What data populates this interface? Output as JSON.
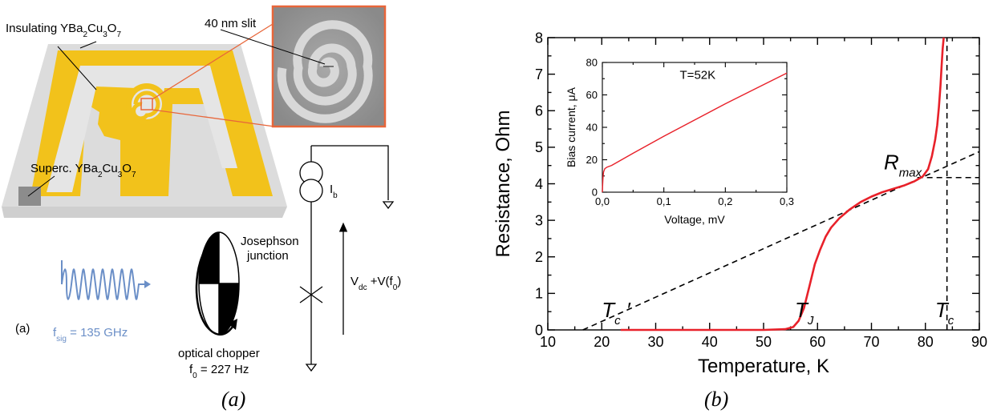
{
  "figure_a": {
    "labels": {
      "insulating": [
        "Insulating YBa",
        "2",
        "Cu",
        "3",
        "O",
        "7"
      ],
      "superc": [
        "Superc. YBa",
        "2",
        "Cu",
        "3",
        "O",
        "7"
      ],
      "slit": "40 nm slit",
      "bias": [
        "I",
        "b"
      ],
      "josephson1": "Josephson",
      "josephson2": "junction",
      "voltage": [
        "V",
        "dc",
        " +V(f",
        "0",
        ")"
      ],
      "panel": "(a)",
      "fsig": [
        "f",
        "sig",
        " = 135 GHz"
      ],
      "chopper1": "optical chopper",
      "chopper2": [
        "f",
        "0",
        " = 227 Hz"
      ]
    },
    "colors": {
      "gold": "#f2c21b",
      "signal": "#6b8fc7",
      "zoom": "#e8663a"
    }
  },
  "captions": {
    "a": "(a)",
    "b": "(b)"
  },
  "chart_data": [
    {
      "type": "line",
      "xlabel": "Temperature, K",
      "ylabel": "Resistance, Ohm",
      "xlim": [
        10,
        90
      ],
      "ylim": [
        0,
        8
      ],
      "xticks": [
        "10",
        "20",
        "30",
        "40",
        "50",
        "60",
        "70",
        "80",
        "90"
      ],
      "yticks": [
        "0",
        "1",
        "2",
        "3",
        "4",
        "5",
        "6",
        "7",
        "8"
      ],
      "series": [
        {
          "color": "#e8212a",
          "x": [
            23.5,
            40,
            50,
            54,
            55.5,
            56.5,
            57.5,
            58.5,
            59.5,
            60.5,
            61.5,
            62.5,
            64,
            66,
            68,
            70,
            72,
            74,
            76,
            78,
            79.5,
            80.5,
            81.2,
            81.8,
            82.2,
            82.5,
            82.8,
            83.0,
            83.2,
            83.4
          ],
          "y": [
            0,
            0,
            0,
            0.02,
            0.08,
            0.25,
            0.6,
            1.2,
            1.8,
            2.2,
            2.55,
            2.8,
            3.05,
            3.3,
            3.5,
            3.65,
            3.77,
            3.86,
            3.95,
            4.07,
            4.2,
            4.4,
            4.75,
            5.2,
            5.6,
            6.1,
            6.7,
            7.2,
            7.7,
            8.0
          ]
        }
      ],
      "reference_lines": [
        {
          "style": "dashed",
          "x": [
            16.5,
            90
          ],
          "y": [
            0,
            4.88
          ]
        },
        {
          "style": "dashed",
          "x": [
            84,
            84
          ],
          "y": [
            0,
            8
          ]
        },
        {
          "style": "dashed",
          "x": [
            78.5,
            90
          ],
          "y": [
            4.17,
            4.17
          ]
        }
      ],
      "annotations": [
        {
          "text": "T",
          "sub": "c",
          "suffix": " ′",
          "x": 20,
          "y": 0.35
        },
        {
          "text": "T",
          "sub": "J",
          "suffix": "",
          "x": 55.8,
          "y": 0.35
        },
        {
          "text": "T",
          "sub": "c",
          "suffix": "",
          "x": 81.8,
          "y": 0.35
        },
        {
          "text": "R",
          "sub": "max",
          "suffix": "",
          "x": 72.3,
          "y": 4.4
        }
      ]
    },
    {
      "type": "line",
      "inset": true,
      "title": "T=52K",
      "xlabel": "Voltage, mV",
      "ylabel": "Bias current, μA",
      "xlim": [
        0,
        0.3
      ],
      "ylim": [
        0,
        80
      ],
      "xticks": [
        "0,0",
        "0,1",
        "0,2",
        "0,3"
      ],
      "yticks": [
        "0",
        "20",
        "40",
        "60",
        "80"
      ],
      "series": [
        {
          "color": "#e8212a",
          "x": [
            0,
            0.0005,
            0.001,
            0.002,
            0.004,
            0.008,
            0.015,
            0.05,
            0.1,
            0.15,
            0.2,
            0.25,
            0.3
          ],
          "y": [
            0,
            5,
            9,
            12.5,
            14.5,
            15.5,
            16.5,
            24,
            34.5,
            44.5,
            54.5,
            64,
            73.5
          ]
        }
      ]
    }
  ]
}
